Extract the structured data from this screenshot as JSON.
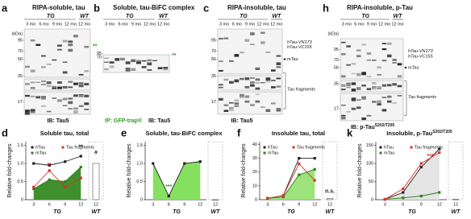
{
  "panels": [
    {
      "letter": "a",
      "title": "RIPA-soluble, tau",
      "group_tg": "TG",
      "group_wt": "WT",
      "lanes": [
        "3 mo",
        "6 mo",
        "9 mo",
        "12 mo",
        "12 mo"
      ],
      "kda_label": "(kDa)",
      "kda": [
        95,
        70,
        56,
        35,
        17
      ],
      "marker": "**",
      "ib": "IB: Tau5"
    },
    {
      "letter": "b",
      "title": "Soluble, tau-BiFC complex",
      "group_tg": "TG",
      "group_wt": "WT",
      "lanes": [
        "3 mo",
        "6 mo",
        "9 mo",
        "12 mo",
        "12 mo"
      ],
      "kda": [
        95,
        70
      ],
      "marker": "**",
      "ip": "IP: GFP-trap®",
      "ib": "IB: Tau5"
    },
    {
      "letter": "c",
      "title": "RIPA-insoluble, tau",
      "group_tg": "TG",
      "group_wt": "WT",
      "lanes": [
        "3 mo",
        "6 mo",
        "9 mo",
        "12 mo",
        "12 mo"
      ],
      "kda": [
        95,
        70,
        56,
        35,
        17
      ],
      "labels_right": [
        "hTau-VN173",
        "hTau-VC155",
        "mTau",
        "Tau fragments"
      ],
      "ib": "IB: Tau5"
    },
    {
      "letter": "h",
      "title": "RIPA-insoluble, p-Tau",
      "group_tg": "TG",
      "group_wt": "WT",
      "lanes": [
        "3 mo",
        "6 mo",
        "9 mo",
        "12 mo",
        "12 mo"
      ],
      "kda_label": "(kDa)",
      "kda": [
        95,
        70,
        56,
        35,
        17
      ],
      "labels_right": [
        "hTau-VN173",
        "hTau-VC155",
        "mTau",
        "Tau fragments"
      ],
      "ib": "IB: p-Tau",
      "ib_sup": "S202/T205"
    }
  ],
  "charts": [
    {
      "letter": "d",
      "type": "line",
      "title": "Soluble tau, total",
      "ylabel": "Relative fold-changes",
      "categories": [
        "3",
        "6",
        "9",
        "12",
        "12"
      ],
      "group_tg": "TG",
      "group_wt": "WT",
      "ylim": [
        0,
        1.6
      ],
      "yticks": [
        0,
        0.5,
        {
          "value": 1,
          "label": "1.0"
        },
        1.5
      ],
      "series": [
        {
          "name": "hTau",
          "color": "#222222",
          "values": [
            1.0,
            0.95,
            1.05,
            1.2,
            1.0
          ]
        },
        {
          "name": "mTau",
          "color": "#2e7d1e",
          "fill": "#3f8f2c",
          "values": [
            0.3,
            0.55,
            0.5,
            0.9,
            null
          ]
        },
        {
          "name": "Tau fragments",
          "color": "#d9302a",
          "values": [
            0.35,
            0.8,
            0.35,
            0.6,
            null
          ]
        }
      ],
      "annotations": [
        {
          "text": "**",
          "color": "#d9302a"
        },
        {
          "text": "**",
          "color": "#222222"
        },
        {
          "text": "#",
          "color": "#222222"
        }
      ]
    },
    {
      "letter": "e",
      "type": "line",
      "title": "Soluble, tau-BiFC complex",
      "ylabel": "Relative fold-changes",
      "categories": [
        "3",
        "6",
        "9",
        "12",
        "12"
      ],
      "group_tg": "TG",
      "group_wt": "WT",
      "ylim": [
        0,
        1.6
      ],
      "yticks": [
        0,
        0.5,
        {
          "value": 1,
          "label": "1.0"
        },
        1.5
      ],
      "series": [
        {
          "color": "#222222",
          "fill": "#86e060",
          "values": [
            1.0,
            0.1,
            1.0,
            1.05,
            0
          ]
        }
      ],
      "annotations": [
        {
          "text": "***",
          "color": "#2e9d1e"
        }
      ]
    },
    {
      "letter": "f",
      "type": "line",
      "title": "Insoluble tau, total",
      "ylabel": "Relative fold-changes",
      "categories": [
        "3",
        "6",
        "9",
        "12",
        "12"
      ],
      "group_tg": "TG",
      "group_wt": "WT",
      "ylim": [
        0,
        42
      ],
      "yticks": [
        0,
        10,
        20,
        30,
        40
      ],
      "series": [
        {
          "name": "hTau",
          "color": "#222222",
          "values": [
            1,
            3,
            30,
            30,
            1
          ]
        },
        {
          "name": "mTau",
          "color": "#2e7d1e",
          "fill": "#9be37a",
          "values": [
            1,
            2,
            18,
            22,
            null
          ]
        },
        {
          "name": "Tau fragments",
          "color": "#d9302a",
          "values": [
            1,
            3,
            26,
            14,
            null
          ]
        }
      ],
      "annotations": [
        {
          "text": "n.s.",
          "color": "#222222"
        }
      ]
    },
    {
      "letter": "k",
      "type": "line",
      "title": "Insoluble, p-Tau",
      "title_sup": "S202/T205",
      "ylabel": "Relative fold-changes",
      "categories": [
        "3",
        "6",
        "9",
        "12",
        "12"
      ],
      "group_tg": "TG",
      "group_wt": "WT",
      "ylim": [
        0,
        160
      ],
      "yticks": [
        0,
        50,
        100,
        150
      ],
      "series": [
        {
          "name": "hTau",
          "color": "#222222",
          "fill": "#e4e4e4",
          "values": [
            1,
            20,
            90,
            140,
            1
          ]
        },
        {
          "name": "mTau",
          "color": "#2e7d1e",
          "values": [
            1,
            5,
            10,
            20,
            null
          ]
        },
        {
          "name": "Tau fragments",
          "color": "#d9302a",
          "values": [
            1,
            30,
            100,
            130,
            null
          ]
        }
      ],
      "annotations": [
        {
          "text": "***",
          "color": "#d9302a"
        }
      ]
    }
  ]
}
